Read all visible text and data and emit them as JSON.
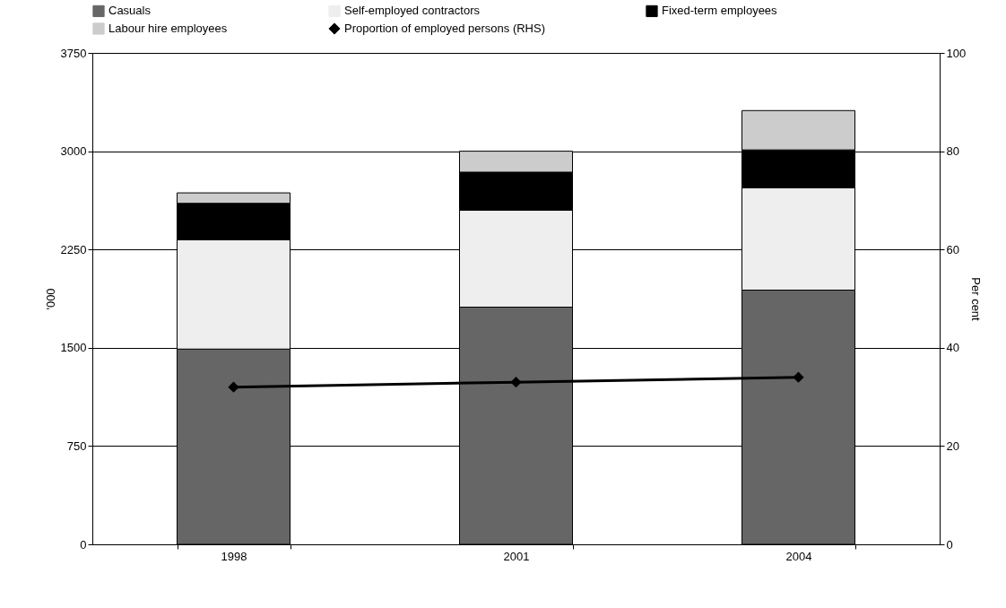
{
  "chart_data": {
    "type": "bar",
    "stacked": true,
    "ylabel": "'000",
    "y2label": "Per cent",
    "categories": [
      "1998",
      "2001",
      "2004"
    ],
    "ylim": [
      0,
      3750
    ],
    "yticks": [
      0,
      750,
      1500,
      2250,
      3000,
      3750
    ],
    "y2lim": [
      0,
      100
    ],
    "y2ticks": [
      0,
      20,
      40,
      60,
      80,
      100
    ],
    "grid": "y",
    "legend": "top",
    "series": [
      {
        "name": "Casuals",
        "color": "#666666",
        "values": [
          1490,
          1810,
          1940
        ]
      },
      {
        "name": "Self-employed contractors",
        "color": "#eeeeee",
        "values": [
          835,
          740,
          780
        ]
      },
      {
        "name": "Fixed-term employees",
        "color": "#000000",
        "values": [
          277,
          290,
          290
        ]
      },
      {
        "name": "Labour hire employees",
        "color": "#cccccc",
        "values": [
          80,
          160,
          300
        ]
      },
      {
        "name": "Proportion of employed persons (RHS)",
        "type": "line",
        "axis": "y2",
        "color": "#000000",
        "marker": "diamond",
        "values": [
          32,
          33,
          34
        ]
      }
    ]
  }
}
